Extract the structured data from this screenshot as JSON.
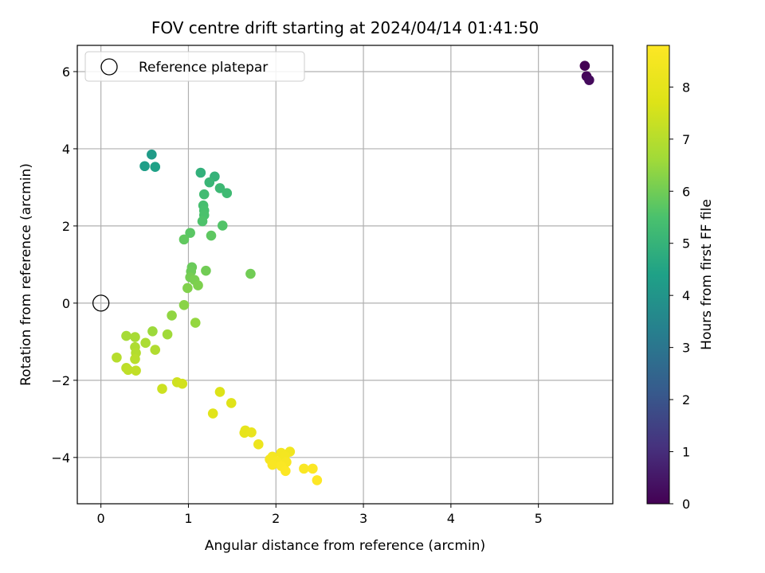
{
  "chart_data": {
    "type": "scatter",
    "title": "FOV centre drift starting at 2024/04/14 01:41:50",
    "xlabel": "Angular distance from reference (arcmin)",
    "ylabel": "Rotation from reference (arcmin)",
    "xlim": [
      -0.27,
      5.85
    ],
    "ylim": [
      -5.2,
      6.68
    ],
    "xticks": [
      0,
      1,
      2,
      3,
      4,
      5
    ],
    "yticks": [
      -4,
      -2,
      0,
      2,
      4,
      6
    ],
    "grid": true,
    "legend": {
      "position": "upper-left",
      "entries": [
        "Reference platepar"
      ]
    },
    "reference_point": {
      "x": 0,
      "y": 0,
      "marker": "hollow-circle"
    },
    "colorbar": {
      "label": "Hours from first FF file",
      "colormap": "viridis",
      "range": [
        0,
        8.8
      ],
      "ticks": [
        0,
        1,
        2,
        3,
        4,
        5,
        6,
        7,
        8
      ]
    },
    "series": [
      {
        "points": [
          {
            "x": 5.53,
            "y": 6.15,
            "c": 0.0
          },
          {
            "x": 5.55,
            "y": 5.88,
            "c": 0.1
          },
          {
            "x": 5.58,
            "y": 5.78,
            "c": 0.2
          },
          {
            "x": 0.58,
            "y": 3.85,
            "c": 4.2
          },
          {
            "x": 0.5,
            "y": 3.55,
            "c": 4.3
          },
          {
            "x": 0.62,
            "y": 3.53,
            "c": 4.4
          },
          {
            "x": 1.14,
            "y": 3.38,
            "c": 4.9
          },
          {
            "x": 1.3,
            "y": 3.28,
            "c": 5.0
          },
          {
            "x": 1.24,
            "y": 3.13,
            "c": 5.1
          },
          {
            "x": 1.36,
            "y": 2.98,
            "c": 5.2
          },
          {
            "x": 1.44,
            "y": 2.85,
            "c": 5.25
          },
          {
            "x": 1.18,
            "y": 2.82,
            "c": 5.3
          },
          {
            "x": 1.17,
            "y": 2.53,
            "c": 5.4
          },
          {
            "x": 1.18,
            "y": 2.4,
            "c": 5.45
          },
          {
            "x": 1.18,
            "y": 2.28,
            "c": 5.5
          },
          {
            "x": 1.16,
            "y": 2.12,
            "c": 5.55
          },
          {
            "x": 1.39,
            "y": 2.01,
            "c": 5.6
          },
          {
            "x": 1.02,
            "y": 1.82,
            "c": 5.7
          },
          {
            "x": 1.26,
            "y": 1.75,
            "c": 5.75
          },
          {
            "x": 0.95,
            "y": 1.65,
            "c": 5.8
          },
          {
            "x": 1.04,
            "y": 0.93,
            "c": 5.9
          },
          {
            "x": 1.03,
            "y": 0.82,
            "c": 5.95
          },
          {
            "x": 1.2,
            "y": 0.84,
            "c": 6.0
          },
          {
            "x": 1.71,
            "y": 0.76,
            "c": 6.0
          },
          {
            "x": 1.02,
            "y": 0.67,
            "c": 6.05
          },
          {
            "x": 1.07,
            "y": 0.6,
            "c": 6.1
          },
          {
            "x": 1.11,
            "y": 0.46,
            "c": 6.15
          },
          {
            "x": 0.99,
            "y": 0.39,
            "c": 6.2
          },
          {
            "x": 0.95,
            "y": -0.05,
            "c": 6.3
          },
          {
            "x": 0.81,
            "y": -0.32,
            "c": 6.4
          },
          {
            "x": 1.08,
            "y": -0.51,
            "c": 6.45
          },
          {
            "x": 0.59,
            "y": -0.73,
            "c": 6.55
          },
          {
            "x": 0.76,
            "y": -0.81,
            "c": 6.6
          },
          {
            "x": 0.29,
            "y": -0.85,
            "c": 6.7
          },
          {
            "x": 0.39,
            "y": -0.88,
            "c": 6.75
          },
          {
            "x": 0.51,
            "y": -1.03,
            "c": 6.8
          },
          {
            "x": 0.39,
            "y": -1.14,
            "c": 6.85
          },
          {
            "x": 0.62,
            "y": -1.21,
            "c": 6.9
          },
          {
            "x": 0.4,
            "y": -1.29,
            "c": 6.95
          },
          {
            "x": 0.18,
            "y": -1.41,
            "c": 7.0
          },
          {
            "x": 0.39,
            "y": -1.45,
            "c": 7.05
          },
          {
            "x": 0.29,
            "y": -1.68,
            "c": 7.1
          },
          {
            "x": 0.31,
            "y": -1.73,
            "c": 7.15
          },
          {
            "x": 0.4,
            "y": -1.75,
            "c": 7.2
          },
          {
            "x": 0.7,
            "y": -2.22,
            "c": 7.4
          },
          {
            "x": 0.87,
            "y": -2.05,
            "c": 7.45
          },
          {
            "x": 0.93,
            "y": -2.09,
            "c": 7.5
          },
          {
            "x": 1.36,
            "y": -2.3,
            "c": 7.7
          },
          {
            "x": 1.49,
            "y": -2.59,
            "c": 7.8
          },
          {
            "x": 1.28,
            "y": -2.86,
            "c": 7.85
          },
          {
            "x": 1.65,
            "y": -3.3,
            "c": 8.0
          },
          {
            "x": 1.64,
            "y": -3.36,
            "c": 8.05
          },
          {
            "x": 1.72,
            "y": -3.35,
            "c": 8.1
          },
          {
            "x": 1.8,
            "y": -3.66,
            "c": 8.25
          },
          {
            "x": 2.16,
            "y": -3.85,
            "c": 8.4
          },
          {
            "x": 2.06,
            "y": -3.88,
            "c": 8.45
          },
          {
            "x": 1.96,
            "y": -3.98,
            "c": 8.5
          },
          {
            "x": 2.1,
            "y": -3.97,
            "c": 8.5
          },
          {
            "x": 1.93,
            "y": -4.05,
            "c": 8.55
          },
          {
            "x": 2.01,
            "y": -4.1,
            "c": 8.6
          },
          {
            "x": 2.12,
            "y": -4.12,
            "c": 8.6
          },
          {
            "x": 1.96,
            "y": -4.19,
            "c": 8.65
          },
          {
            "x": 2.06,
            "y": -4.22,
            "c": 8.7
          },
          {
            "x": 2.32,
            "y": -4.29,
            "c": 8.7
          },
          {
            "x": 2.42,
            "y": -4.29,
            "c": 8.75
          },
          {
            "x": 2.11,
            "y": -4.35,
            "c": 8.75
          },
          {
            "x": 2.47,
            "y": -4.59,
            "c": 8.8
          }
        ]
      }
    ]
  }
}
